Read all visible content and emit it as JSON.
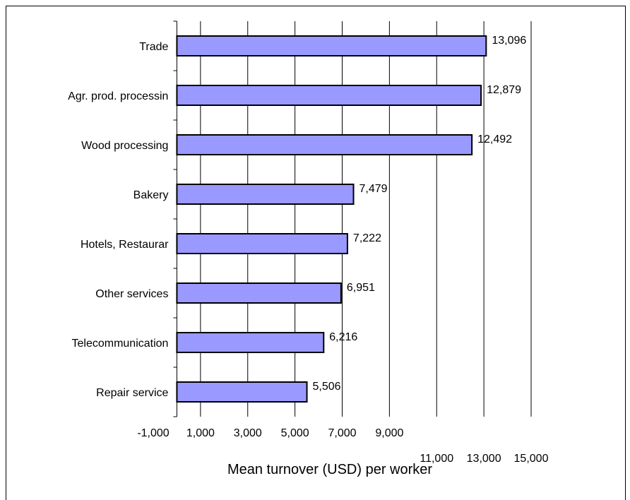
{
  "chart_data": {
    "type": "bar",
    "orientation": "horizontal",
    "categories": [
      "Trade",
      "Agr. prod. processing",
      "Wood processing",
      "Bakery",
      "Hotels, Restaurants",
      "Other services",
      "Telecommunication",
      "Repair service"
    ],
    "category_labels_shown": [
      "Trade",
      "Agr. prod. processin",
      "Wood processing",
      "Bakery",
      "Hotels, Restaurar",
      "Other services",
      "Telecommunication",
      "Repair service"
    ],
    "values": [
      13096,
      12879,
      12492,
      7479,
      7222,
      6951,
      6216,
      5506
    ],
    "data_labels": [
      "13,096",
      "12,879",
      "12,492",
      "7,479",
      "7,222",
      "6,951",
      "6,216",
      "5,506"
    ],
    "xlabel": "Mean turnover (USD) per worker",
    "xlim": [
      -1000,
      15000
    ],
    "x_ticks": [
      -1000,
      1000,
      3000,
      5000,
      7000,
      9000,
      11000,
      13000,
      15000
    ],
    "x_tick_labels": [
      "-1,000",
      "1,000",
      "3,000",
      "5,000",
      "7,000",
      "9,000",
      "11,000",
      "13,000",
      "15,000"
    ],
    "bar_color": "#9999ff",
    "grid": "vertical"
  }
}
